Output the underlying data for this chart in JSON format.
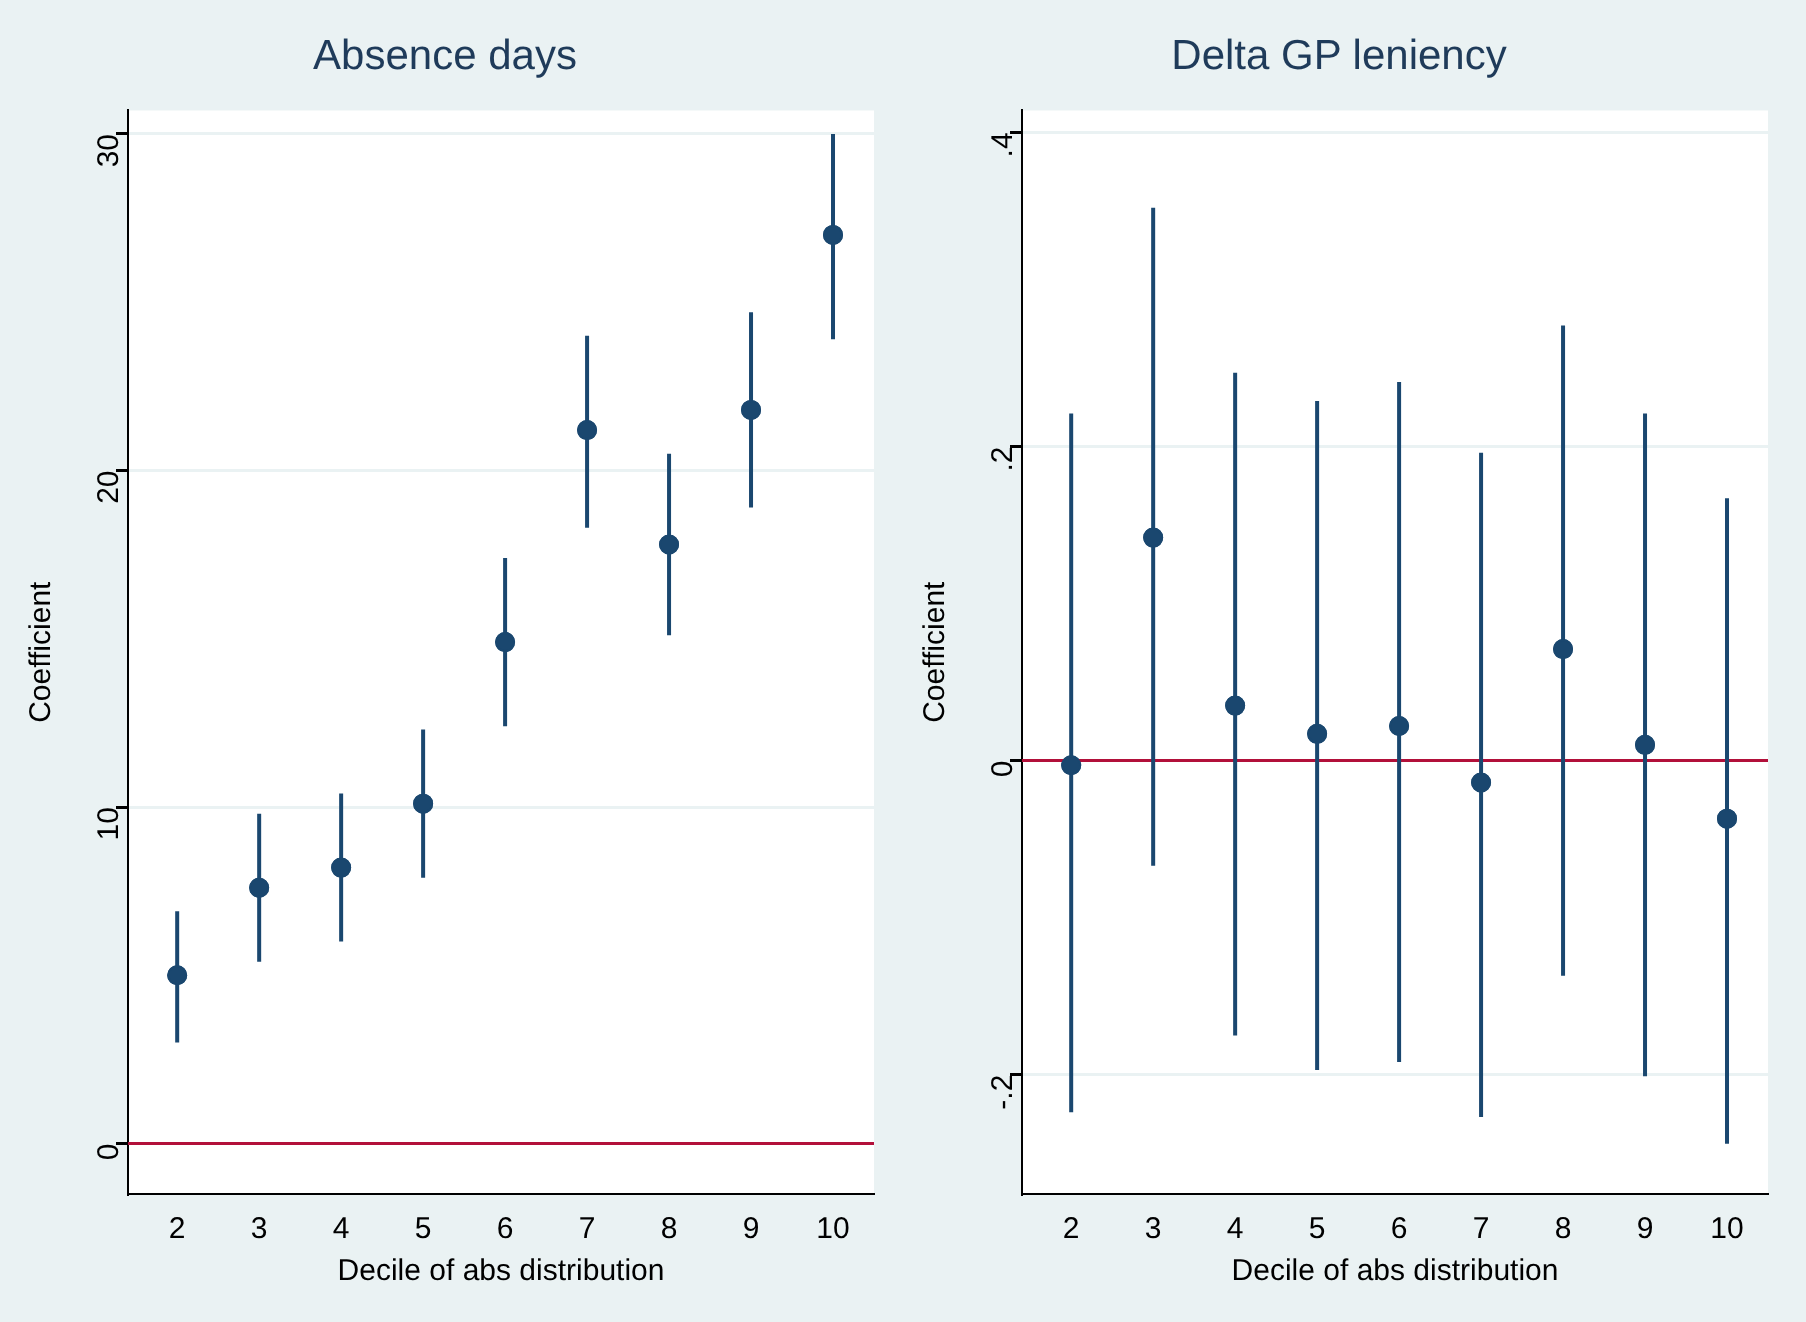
{
  "chart_data": [
    {
      "type": "scatter",
      "title": "Absence days",
      "xlabel": "Decile of abs distribution",
      "ylabel": "Coefficient",
      "x": [
        2,
        3,
        4,
        5,
        6,
        7,
        8,
        9,
        10
      ],
      "series": [
        {
          "color": "#1a476f",
          "values": [
            5.0,
            7.6,
            8.2,
            10.1,
            14.9,
            21.2,
            17.8,
            21.8,
            27.0
          ],
          "errors": [
            [
              3.0,
              6.9
            ],
            [
              5.4,
              9.8
            ],
            [
              6.0,
              10.4
            ],
            [
              7.9,
              12.3
            ],
            [
              12.4,
              17.4
            ],
            [
              18.3,
              24.0
            ],
            [
              15.1,
              20.5
            ],
            [
              18.9,
              24.7
            ],
            [
              23.9,
              30.0
            ]
          ]
        }
      ],
      "xlim": [
        1.4,
        10.5
      ],
      "xticks": [
        2,
        3,
        4,
        5,
        6,
        7,
        8,
        9,
        10
      ],
      "ylim": [
        -1.5,
        30.7
      ],
      "yticks": [
        0,
        10,
        20,
        30
      ],
      "ref_lines": [
        {
          "axis": "y",
          "value": 0,
          "color": "#b2103a"
        }
      ],
      "grid": "y",
      "marker": "circle",
      "legend": false
    },
    {
      "type": "scatter",
      "title": "Delta GP leniency",
      "xlabel": "Decile of abs distribution",
      "ylabel": "Coefficient",
      "x": [
        2,
        3,
        4,
        5,
        6,
        7,
        8,
        9,
        10
      ],
      "series": [
        {
          "color": "#1a476f",
          "values": [
            -0.003,
            0.142,
            0.035,
            0.017,
            0.022,
            -0.014,
            0.071,
            0.01,
            -0.037
          ],
          "errors": [
            [
              -0.224,
              0.221
            ],
            [
              -0.067,
              0.352
            ],
            [
              -0.175,
              0.247
            ],
            [
              -0.197,
              0.229
            ],
            [
              -0.192,
              0.241
            ],
            [
              -0.227,
              0.196
            ],
            [
              -0.137,
              0.277
            ],
            [
              -0.201,
              0.221
            ],
            [
              -0.244,
              0.167
            ]
          ]
        }
      ],
      "xlim": [
        1.4,
        10.5
      ],
      "xticks": [
        2,
        3,
        4,
        5,
        6,
        7,
        8,
        9,
        10
      ],
      "ylim": [
        -0.276,
        0.414
      ],
      "yticks": [
        {
          "value": -0.2,
          "label": "-.2"
        },
        0,
        {
          "value": 0.2,
          "label": ".2"
        },
        {
          "value": 0.4,
          "label": ".4"
        }
      ],
      "ref_lines": [
        {
          "axis": "y",
          "value": 0,
          "color": "#b2103a"
        }
      ],
      "grid": "y",
      "marker": "circle",
      "legend": false
    }
  ]
}
